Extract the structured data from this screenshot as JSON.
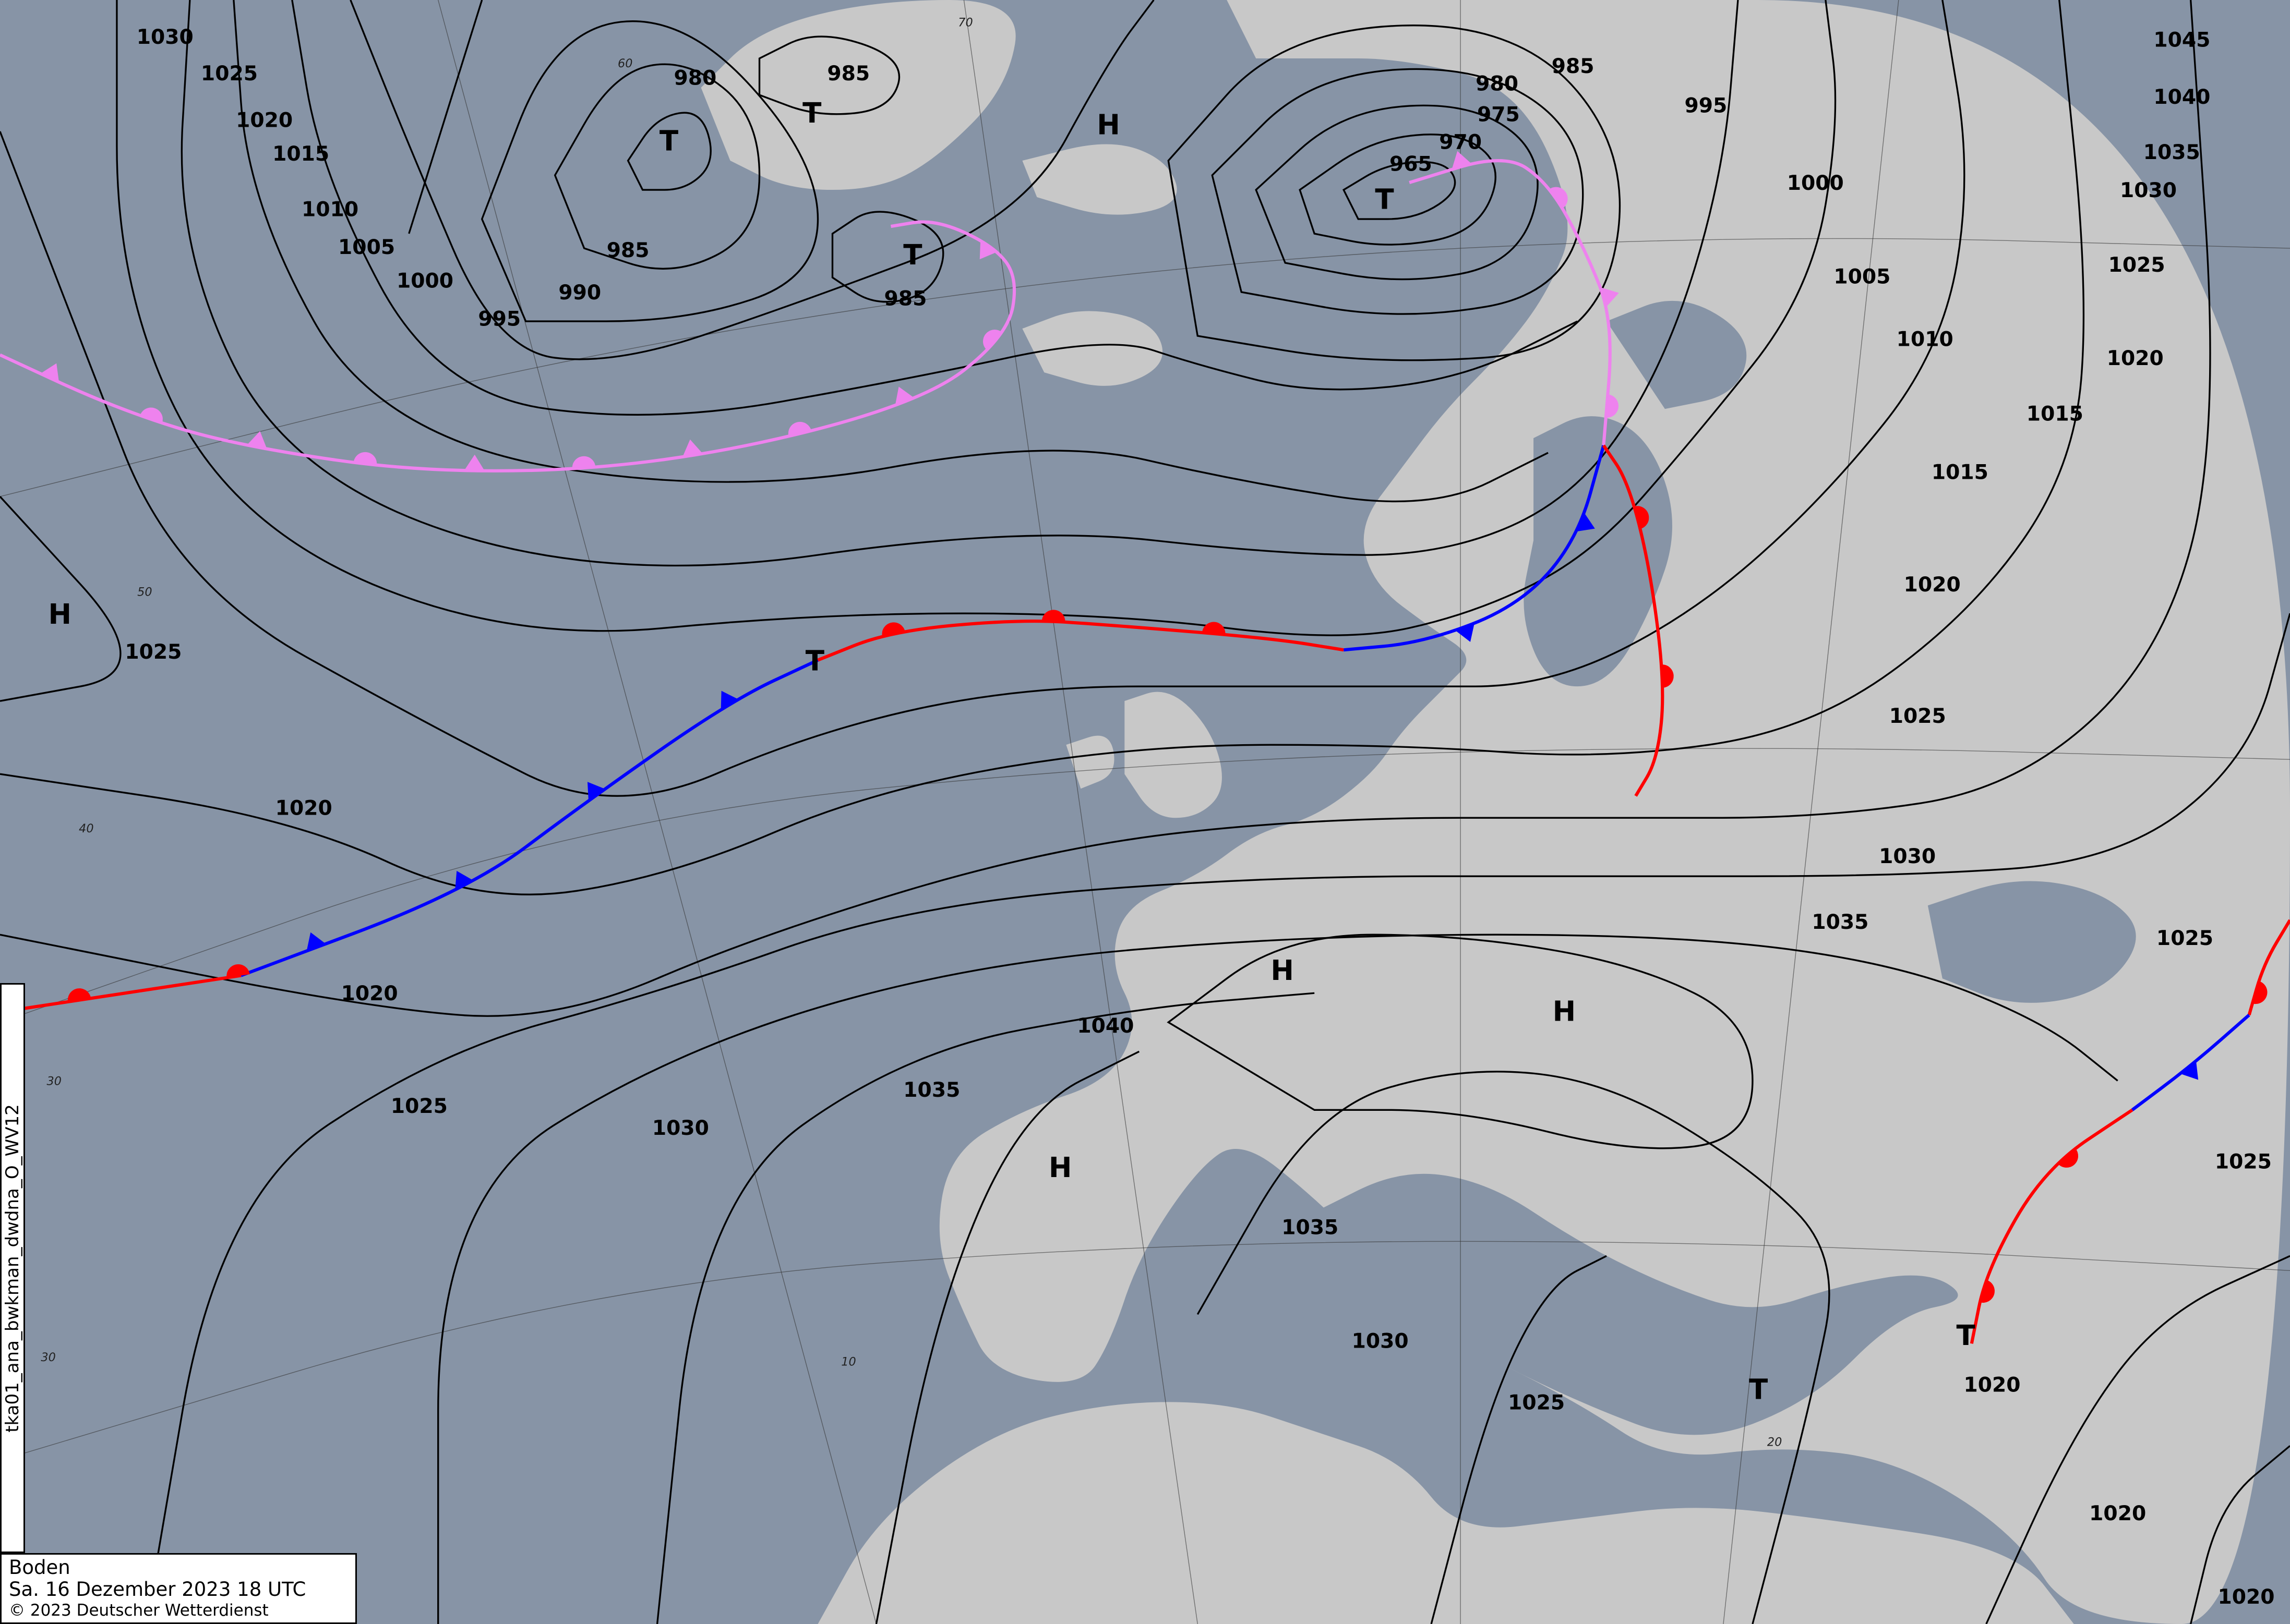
{
  "map": {
    "type": "surface-analysis",
    "colors": {
      "sea": "#8794a6",
      "land": "#c8c8c8",
      "isobar": "#000000",
      "warm_front": "#ff0000",
      "cold_front": "#0000ff",
      "occlusion": "#ee82ee"
    },
    "isobar_labels": [
      "1030",
      "1025",
      "1020",
      "1015",
      "1010",
      "1005",
      "1000",
      "995",
      "990",
      "985",
      "980",
      "985",
      "985",
      "980",
      "985",
      "975",
      "970",
      "965",
      "995",
      "1000",
      "1005",
      "1010",
      "1015",
      "1015",
      "1020",
      "1020",
      "1025",
      "1030",
      "1035",
      "1040",
      "1045",
      "1025",
      "1020",
      "1020",
      "1025",
      "1030",
      "1035",
      "1040",
      "1035",
      "1030",
      "1025",
      "1030",
      "1035",
      "1025",
      "1025",
      "1025",
      "1020",
      "1020",
      "1020"
    ],
    "pressure_centers": [
      "H",
      "H",
      "T",
      "T",
      "T",
      "T",
      "T",
      "H",
      "H",
      "H",
      "T",
      "T"
    ],
    "latitude_labels": [
      "70",
      "60",
      "50",
      "40",
      "30",
      "30",
      "20",
      "10"
    ]
  },
  "legend": {
    "level": "Boden",
    "datetime": "Sa. 16 Dezember 2023 18 UTC",
    "copyright": "© 2023 Deutscher Wetterdienst"
  },
  "product_id": "tka01_ana_bwkman_dwdna_O_WV12"
}
